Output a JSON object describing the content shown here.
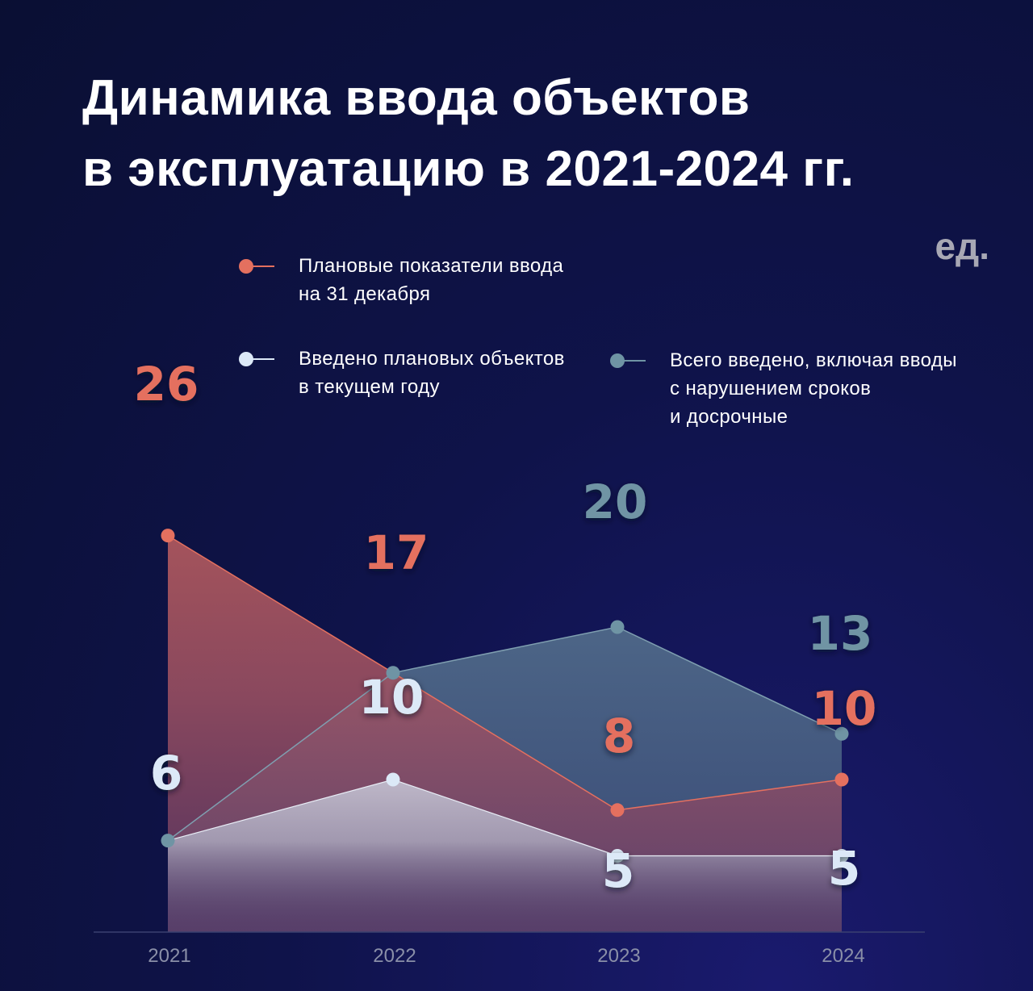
{
  "title": {
    "line1": "Динамика ввода объектов",
    "line2": "в эксплуатацию в 2021-2024 гг."
  },
  "unit": "ед.",
  "colors": {
    "plan": "#e4705f",
    "done": "#dce9f7",
    "total": "#6f94a4"
  },
  "legend": [
    {
      "lines": [
        "Плановые показатели ввода",
        "на 31 декабря"
      ],
      "color": "#e4705f"
    },
    {
      "lines": [
        "Введено плановых объектов",
        "в текущем году"
      ],
      "color": "#dce9f7"
    },
    {
      "lines": [
        "Всего введено, включая вводы",
        "с нарушением сроков",
        "и досрочные"
      ],
      "color": "#6f94a4"
    }
  ],
  "chart_data": {
    "type": "area",
    "categories": [
      "2021",
      "2022",
      "2023",
      "2024"
    ],
    "series": [
      {
        "name": "Плановые показатели ввода на 31 декабря",
        "values": [
          26,
          17,
          8,
          10
        ]
      },
      {
        "name": "Введено плановых объектов в текущем году",
        "values": [
          6,
          10,
          5,
          5
        ]
      },
      {
        "name": "Всего введено, включая вводы с нарушением сроков и досрочные",
        "values": [
          6,
          17,
          20,
          13
        ]
      }
    ],
    "data_labels": {
      "plan": [
        "26",
        "17",
        "8",
        "10"
      ],
      "done": [
        "6",
        "10",
        "5",
        "5"
      ],
      "total": [
        "20",
        "13"
      ]
    },
    "ylim": [
      0,
      30
    ],
    "grid": false
  }
}
